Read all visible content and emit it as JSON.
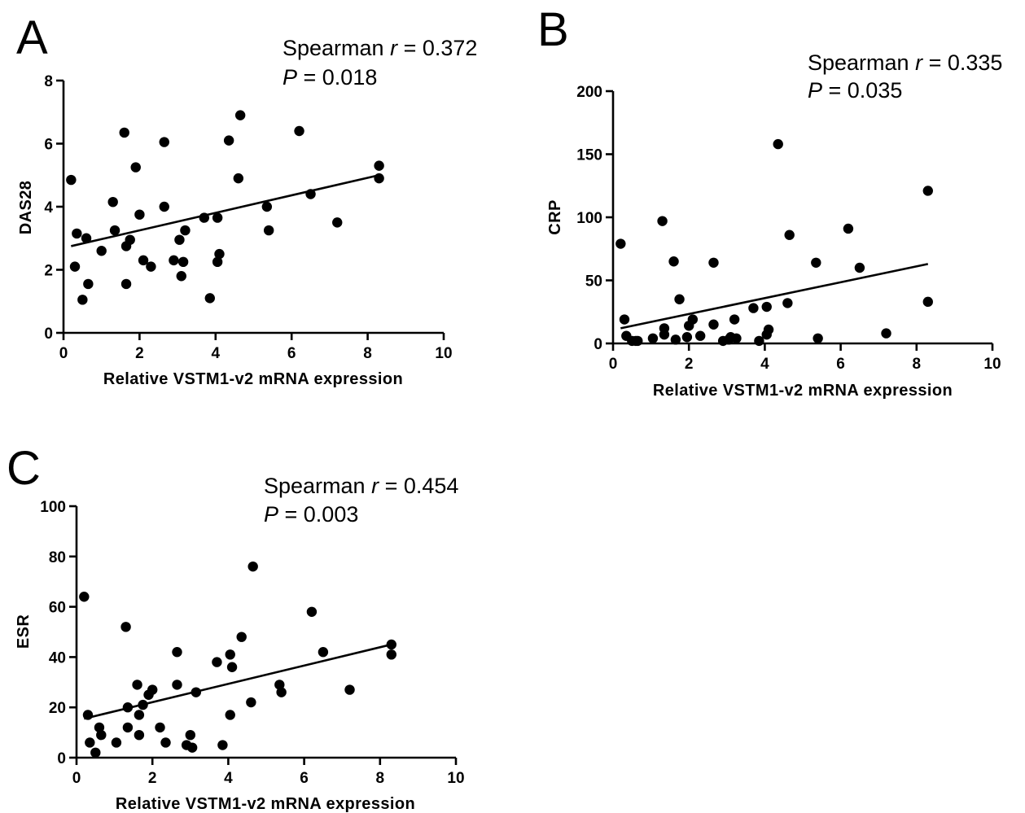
{
  "chart_data": [
    {
      "panel": "A",
      "type": "scatter",
      "xlabel": "Relative VSTM1-v2 mRNA expression",
      "ylabel": "DAS28",
      "xlim": [
        0,
        10
      ],
      "ylim": [
        0,
        8
      ],
      "xticks": [
        0,
        2,
        4,
        6,
        8,
        10
      ],
      "yticks": [
        0,
        2,
        4,
        6,
        8
      ],
      "stat_prefix": "Spearman ",
      "stat_r_symbol": "r",
      "stat_r_value": " = 0.372",
      "stat_p_symbol": "P",
      "stat_p_value": " = 0.018",
      "fit_line": {
        "x": [
          0.2,
          8.3
        ],
        "y": [
          2.75,
          5.0
        ]
      },
      "points": [
        [
          0.2,
          4.85
        ],
        [
          0.3,
          2.1
        ],
        [
          0.35,
          3.15
        ],
        [
          0.5,
          1.05
        ],
        [
          0.6,
          3.0
        ],
        [
          0.65,
          1.55
        ],
        [
          1.0,
          2.6
        ],
        [
          1.3,
          4.15
        ],
        [
          1.35,
          3.25
        ],
        [
          1.6,
          6.35
        ],
        [
          1.65,
          2.75
        ],
        [
          1.65,
          1.55
        ],
        [
          1.75,
          2.95
        ],
        [
          1.9,
          5.25
        ],
        [
          2.0,
          3.75
        ],
        [
          2.1,
          2.3
        ],
        [
          2.3,
          2.1
        ],
        [
          2.65,
          6.05
        ],
        [
          2.65,
          4.0
        ],
        [
          2.9,
          2.3
        ],
        [
          3.05,
          2.95
        ],
        [
          3.1,
          1.8
        ],
        [
          3.15,
          2.25
        ],
        [
          3.2,
          3.25
        ],
        [
          3.7,
          3.65
        ],
        [
          3.85,
          1.1
        ],
        [
          4.05,
          2.25
        ],
        [
          4.05,
          3.65
        ],
        [
          4.1,
          2.5
        ],
        [
          4.35,
          6.1
        ],
        [
          4.6,
          4.9
        ],
        [
          4.65,
          6.9
        ],
        [
          5.35,
          4.0
        ],
        [
          5.4,
          3.25
        ],
        [
          6.2,
          6.4
        ],
        [
          6.5,
          4.4
        ],
        [
          7.2,
          3.5
        ],
        [
          8.3,
          5.3
        ],
        [
          8.3,
          4.9
        ]
      ]
    },
    {
      "panel": "B",
      "type": "scatter",
      "xlabel": "Relative VSTM1-v2 mRNA expression",
      "ylabel": "CRP",
      "xlim": [
        0,
        10
      ],
      "ylim": [
        0,
        200
      ],
      "xticks": [
        0,
        2,
        4,
        6,
        8,
        10
      ],
      "yticks": [
        0,
        50,
        100,
        150,
        200
      ],
      "stat_prefix": "Spearman ",
      "stat_r_symbol": "r",
      "stat_r_value": " = 0.335",
      "stat_p_symbol": "P",
      "stat_p_value": " = 0.035",
      "fit_line": {
        "x": [
          0.2,
          8.3
        ],
        "y": [
          12,
          63
        ]
      },
      "points": [
        [
          0.2,
          79
        ],
        [
          0.3,
          19
        ],
        [
          0.35,
          6
        ],
        [
          0.5,
          2
        ],
        [
          0.6,
          2
        ],
        [
          0.65,
          2
        ],
        [
          1.05,
          4
        ],
        [
          1.3,
          97
        ],
        [
          1.35,
          12
        ],
        [
          1.35,
          7
        ],
        [
          1.6,
          65
        ],
        [
          1.65,
          3
        ],
        [
          1.75,
          35
        ],
        [
          1.95,
          5
        ],
        [
          2.0,
          14
        ],
        [
          2.1,
          19
        ],
        [
          2.3,
          6
        ],
        [
          2.65,
          64
        ],
        [
          2.65,
          15
        ],
        [
          2.9,
          2
        ],
        [
          3.05,
          3
        ],
        [
          3.1,
          5
        ],
        [
          3.2,
          19
        ],
        [
          3.25,
          4
        ],
        [
          3.7,
          28
        ],
        [
          3.85,
          2
        ],
        [
          4.05,
          7
        ],
        [
          4.05,
          29
        ],
        [
          4.1,
          11
        ],
        [
          4.35,
          158
        ],
        [
          4.6,
          32
        ],
        [
          4.65,
          86
        ],
        [
          5.35,
          64
        ],
        [
          5.4,
          4
        ],
        [
          6.2,
          91
        ],
        [
          6.5,
          60
        ],
        [
          7.2,
          8
        ],
        [
          8.3,
          121
        ],
        [
          8.3,
          33
        ]
      ]
    },
    {
      "panel": "C",
      "type": "scatter",
      "xlabel": "Relative VSTM1-v2 mRNA expression",
      "ylabel": "ESR",
      "xlim": [
        0,
        10
      ],
      "ylim": [
        0,
        100
      ],
      "xticks": [
        0,
        2,
        4,
        6,
        8,
        10
      ],
      "yticks": [
        0,
        20,
        40,
        60,
        80,
        100
      ],
      "stat_prefix": "Spearman ",
      "stat_r_symbol": "r",
      "stat_r_value": " = 0.454",
      "stat_p_symbol": "P",
      "stat_p_value": " = 0.003",
      "fit_line": {
        "x": [
          0.2,
          8.3
        ],
        "y": [
          15.5,
          45
        ]
      },
      "points": [
        [
          0.2,
          64
        ],
        [
          0.3,
          17
        ],
        [
          0.35,
          6
        ],
        [
          0.5,
          2
        ],
        [
          0.6,
          12
        ],
        [
          0.65,
          9
        ],
        [
          1.05,
          6
        ],
        [
          1.3,
          52
        ],
        [
          1.35,
          20
        ],
        [
          1.35,
          12
        ],
        [
          1.6,
          29
        ],
        [
          1.65,
          17
        ],
        [
          1.65,
          9
        ],
        [
          1.75,
          21
        ],
        [
          1.9,
          25
        ],
        [
          2.0,
          27
        ],
        [
          2.2,
          12
        ],
        [
          2.35,
          6
        ],
        [
          2.65,
          42
        ],
        [
          2.65,
          29
        ],
        [
          2.9,
          5
        ],
        [
          3.0,
          9
        ],
        [
          3.05,
          4
        ],
        [
          3.15,
          26
        ],
        [
          3.7,
          38
        ],
        [
          3.85,
          5
        ],
        [
          4.05,
          17
        ],
        [
          4.05,
          41
        ],
        [
          4.1,
          36
        ],
        [
          4.35,
          48
        ],
        [
          4.6,
          22
        ],
        [
          4.65,
          76
        ],
        [
          5.35,
          29
        ],
        [
          5.4,
          26
        ],
        [
          6.2,
          58
        ],
        [
          6.5,
          42
        ],
        [
          7.2,
          27
        ],
        [
          8.3,
          45
        ],
        [
          8.3,
          41
        ]
      ]
    }
  ]
}
